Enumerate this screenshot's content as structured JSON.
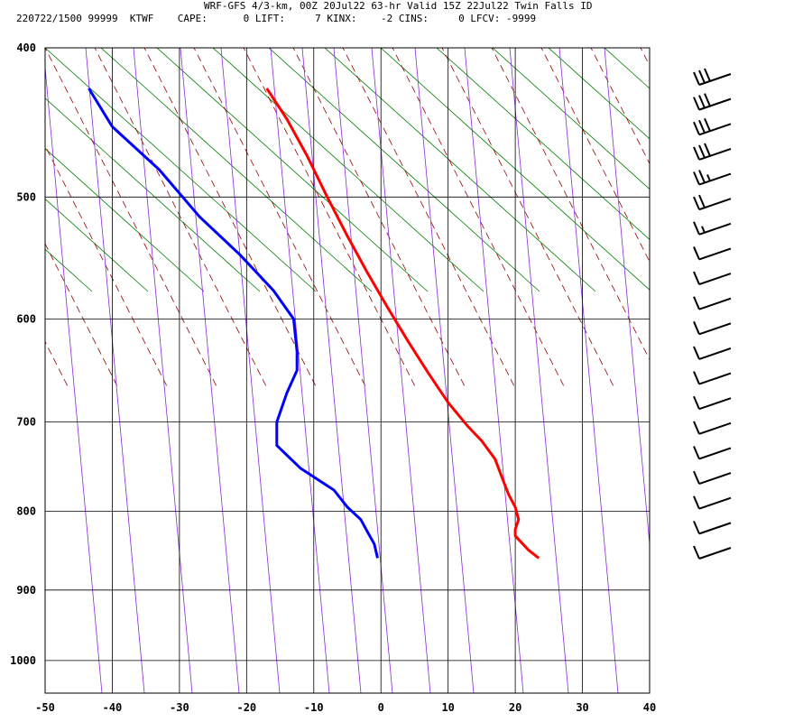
{
  "header": {
    "title": "WRF-GFS 4/3-km, 00Z 20Jul22 63-hr Valid 15Z 22Jul22 Twin Falls ID",
    "info": "220722/1500 99999  KTWF    CAPE:      0 LIFT:     7 KINX:    -2 CINS:     0 LFCV: -9999"
  },
  "chart_data": {
    "type": "line",
    "title": "WRF-GFS 4/3-km, 00Z 20Jul22 63-hr Valid 15Z 22Jul22 Twin Falls ID",
    "xlabel": "",
    "ylabel": "",
    "x_ticks": [
      "-50",
      "-40",
      "-30",
      "-20",
      "-10",
      "0",
      "10",
      "20",
      "30",
      "40"
    ],
    "y_ticks": [
      "400",
      "500",
      "600",
      "700",
      "800",
      "900",
      "1000"
    ],
    "xlim": [
      -50,
      40
    ],
    "ylim_pressure": [
      1050,
      400
    ],
    "grid": true,
    "colors": {
      "temperature": "#ff0000",
      "dewpoint": "#0000ff",
      "dry_adiabat": "#008000",
      "moist_adiabat": "#990000",
      "mixing_ratio": "#8b2bd9"
    },
    "series": [
      {
        "name": "",
        "role": "temperature",
        "color": "#ff0000",
        "points": [
          [
            -17,
            425
          ],
          [
            -14,
            445
          ],
          [
            -11,
            470
          ],
          [
            -8,
            500
          ],
          [
            -5,
            530
          ],
          [
            -2,
            560
          ],
          [
            1,
            590
          ],
          [
            4,
            620
          ],
          [
            7,
            650
          ],
          [
            10,
            680
          ],
          [
            13,
            705
          ],
          [
            15,
            720
          ],
          [
            17,
            740
          ],
          [
            18,
            760
          ],
          [
            19,
            780
          ],
          [
            20,
            795
          ],
          [
            20.5,
            810
          ],
          [
            20,
            822
          ],
          [
            20,
            830
          ],
          [
            22,
            848
          ],
          [
            23.5,
            858
          ]
        ]
      },
      {
        "name": "",
        "role": "dewpoint",
        "color": "#0000ff",
        "points": [
          [
            -43.5,
            425
          ],
          [
            -40,
            450
          ],
          [
            -33,
            480
          ],
          [
            -27,
            515
          ],
          [
            -21,
            545
          ],
          [
            -16,
            575
          ],
          [
            -13,
            600
          ],
          [
            -12.5,
            630
          ],
          [
            -12.5,
            648
          ],
          [
            -14,
            670
          ],
          [
            -15.5,
            700
          ],
          [
            -15.5,
            725
          ],
          [
            -12,
            750
          ],
          [
            -7,
            775
          ],
          [
            -5,
            795
          ],
          [
            -3,
            810
          ],
          [
            -2,
            825
          ],
          [
            -1,
            840
          ],
          [
            -0.5,
            858
          ]
        ]
      }
    ],
    "wind_barbs": [
      {
        "level": 1,
        "full": 3,
        "half": 0
      },
      {
        "level": 2,
        "full": 3,
        "half": 0
      },
      {
        "level": 3,
        "full": 3,
        "half": 0
      },
      {
        "level": 4,
        "full": 3,
        "half": 0
      },
      {
        "level": 5,
        "full": 2,
        "half": 1
      },
      {
        "level": 6,
        "full": 2,
        "half": 0
      },
      {
        "level": 7,
        "full": 1,
        "half": 1
      },
      {
        "level": 8,
        "full": 1,
        "half": 0
      },
      {
        "level": 9,
        "full": 1,
        "half": 0
      },
      {
        "level": 10,
        "full": 1,
        "half": 0
      },
      {
        "level": 11,
        "full": 1,
        "half": 0
      },
      {
        "level": 12,
        "full": 1,
        "half": 0
      },
      {
        "level": 13,
        "full": 1,
        "half": 0
      },
      {
        "level": 14,
        "full": 1,
        "half": 0
      },
      {
        "level": 15,
        "full": 1,
        "half": 0
      },
      {
        "level": 16,
        "full": 1,
        "half": 0
      },
      {
        "level": 17,
        "full": 1,
        "half": 0
      },
      {
        "level": 18,
        "full": 1,
        "half": 0
      },
      {
        "level": 19,
        "full": 1,
        "half": 0
      },
      {
        "level": 20,
        "full": 1,
        "half": 0
      }
    ]
  }
}
